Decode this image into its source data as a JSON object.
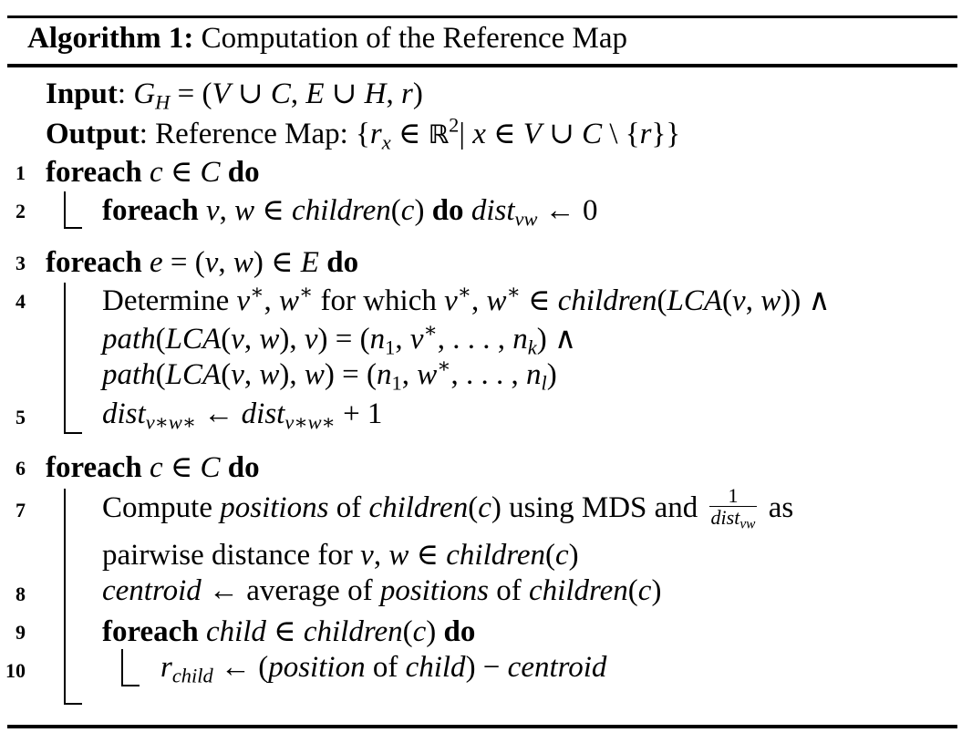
{
  "caption": {
    "label": "Algorithm 1:",
    "title": "Computation of the Reference Map"
  },
  "io": {
    "input_label": "Input",
    "output_label": "Output",
    "output_text": "Reference Map:"
  },
  "lines": [
    {
      "num": "1"
    },
    {
      "num": "2"
    },
    {
      "num": "3"
    },
    {
      "num": "4"
    },
    {
      "num": "5"
    },
    {
      "num": "6"
    },
    {
      "num": "7"
    },
    {
      "num": "8"
    },
    {
      "num": "9"
    },
    {
      "num": "10"
    }
  ],
  "keywords": {
    "foreach": "foreach",
    "do": "do"
  },
  "text": {
    "determine": "Determine",
    "for_which": "for which",
    "compute": "Compute",
    "positions": "positions",
    "of": "of",
    "using_mds_and": "using MDS and",
    "as": "as",
    "pairwise": "pairwise distance for",
    "centroid": "centroid",
    "average_of": "average of",
    "position": "position"
  }
}
